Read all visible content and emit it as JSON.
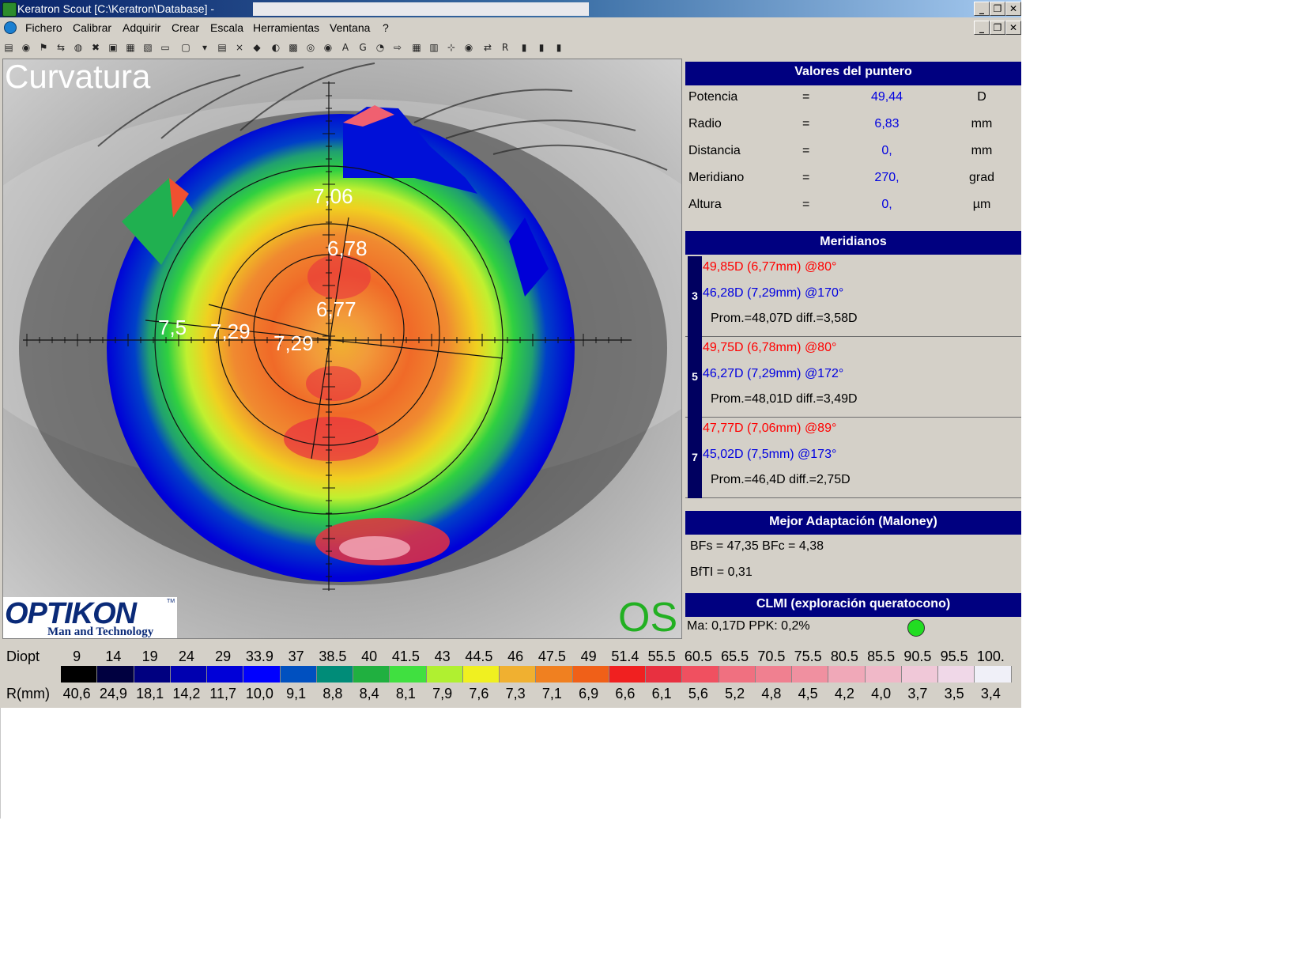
{
  "window": {
    "title": "Keratron Scout [C:\\Keratron\\Database] -",
    "controls": [
      "_",
      "❐",
      "✕"
    ]
  },
  "menu": {
    "items": [
      "Fichero",
      "Calibrar",
      "Adquirir",
      "Crear",
      "Escala",
      "Herramientas",
      "Ventana",
      "?"
    ]
  },
  "toolbar": {
    "icons": [
      "open-db-icon",
      "camera-icon",
      "flag-icon",
      "import-icon",
      "globe-icon",
      "delete-icon",
      "save-icon",
      "save-all-icon",
      "print-icon",
      "monitor-icon",
      "view-icon",
      "dropdown-icon",
      "list-icon",
      "close-x-icon",
      "eraser-icon",
      "eye-icon",
      "grid-icon",
      "target-icon",
      "circle-icon",
      "a-icon",
      "g-icon",
      "rgb-icon",
      "export-icon",
      "table-icon",
      "matrix-icon",
      "axis-icon",
      "eye-view-icon",
      "compare-icon",
      "rx-icon",
      "bars-icon",
      "bars2-icon",
      "bars3-icon"
    ]
  },
  "map": {
    "title": "Curvatura",
    "eye": "OS",
    "ring_labels": {
      "outer_vertical": "7,06",
      "mid_vertical": "6,78",
      "inner_vertical": "6,77",
      "outer_horizontal": "7,5",
      "mid_horizontal": "7,29",
      "inner_horizontal": "7,29"
    },
    "logo": {
      "main": "OPTIKON",
      "tm": "TM",
      "sub": "Man and Technology"
    }
  },
  "pointer_values": {
    "header": "Valores del puntero",
    "rows": [
      {
        "label": "Potencia",
        "eq": "=",
        "value": "49,44",
        "unit": "D"
      },
      {
        "label": "Radio",
        "eq": "=",
        "value": "6,83",
        "unit": "mm"
      },
      {
        "label": "Distancia",
        "eq": "=",
        "value": "0,",
        "unit": "mm"
      },
      {
        "label": "Meridiano",
        "eq": "=",
        "value": "270,",
        "unit": "grad"
      },
      {
        "label": "Altura",
        "eq": "=",
        "value": "0,",
        "unit": "µm"
      }
    ]
  },
  "meridianos": {
    "header": "Meridianos",
    "groups": [
      {
        "ring": "3",
        "steep": "49,85D (6,77mm) @80°",
        "flat": "46,28D (7,29mm) @170°",
        "summary": "Prom.=48,07D  diff.=3,58D"
      },
      {
        "ring": "5",
        "steep": "49,75D (6,78mm) @80°",
        "flat": "46,27D (7,29mm) @172°",
        "summary": "Prom.=48,01D  diff.=3,49D"
      },
      {
        "ring": "7",
        "steep": "47,77D (7,06mm) @89°",
        "flat": "45,02D (7,5mm) @173°",
        "summary": "Prom.=46,4D  diff.=2,75D"
      }
    ]
  },
  "best_fit": {
    "header": "Mejor Adaptación (Maloney)",
    "line1": "BFs = 47,35 BFc = 4,38",
    "line2": "BfTI = 0,31"
  },
  "clmi": {
    "header": "CLMI (exploración queratocono)",
    "text": "Ma: 0,17D   PPK: 0,2%",
    "status_color": "#22dd22"
  },
  "legend": {
    "diopt_label": "Diopt",
    "r_label": "R(mm)",
    "diopt_values": [
      "9",
      "14",
      "19",
      "24",
      "29",
      "33.9",
      "37",
      "38.5",
      "40",
      "41.5",
      "43",
      "44.5",
      "46",
      "47.5",
      "49",
      "51.4",
      "55.5",
      "60.5",
      "65.5",
      "70.5",
      "75.5",
      "80.5",
      "85.5",
      "90.5",
      "95.5",
      "100."
    ],
    "r_values": [
      "40,6",
      "24,9",
      "18,1",
      "14,2",
      "11,7",
      "10,0",
      "9,1",
      "8,8",
      "8,4",
      "8,1",
      "7,9",
      "7,6",
      "7,3",
      "7,1",
      "6,9",
      "6,6",
      "6,1",
      "5,6",
      "5,2",
      "4,8",
      "4,5",
      "4,2",
      "4,0",
      "3,7",
      "3,5",
      "3,4"
    ],
    "colors": [
      "#000000",
      "#000040",
      "#000080",
      "#0000b0",
      "#0000d8",
      "#0000ff",
      "#0050c0",
      "#008c78",
      "#20b040",
      "#40e040",
      "#b0f030",
      "#f0f020",
      "#f0b030",
      "#f08020",
      "#f06018",
      "#f02020",
      "#e83040",
      "#f05060",
      "#f07080",
      "#f08090",
      "#f090a0",
      "#f0a8b8",
      "#f0b8c8",
      "#f0c8d8",
      "#f0d8e8",
      "#f0f0f8"
    ]
  }
}
